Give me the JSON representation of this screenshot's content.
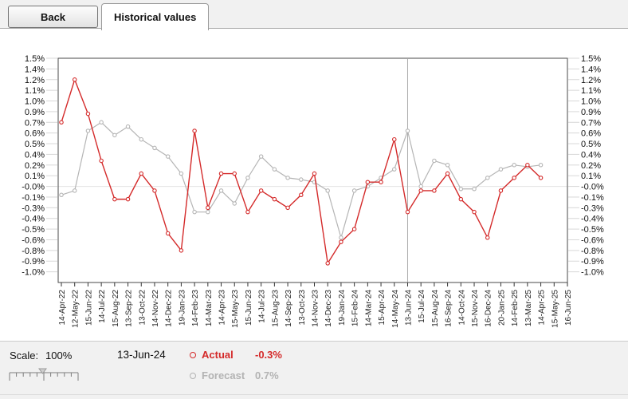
{
  "toolbar": {
    "back_label": "Back",
    "tab_label": "Historical values"
  },
  "chart_data": {
    "type": "line",
    "title": "Historical values",
    "x_labels": [
      "14-Apr-22",
      "12-May-22",
      "15-Jun-22",
      "14-Jul-22",
      "15-Aug-22",
      "13-Sep-22",
      "13-Oct-22",
      "14-Nov-22",
      "14-Dec-22",
      "19-Jan-23",
      "14-Feb-23",
      "14-Mar-23",
      "14-Apr-23",
      "15-May-23",
      "15-Jun-23",
      "14-Jul-23",
      "15-Aug-23",
      "14-Sep-23",
      "13-Oct-23",
      "14-Nov-23",
      "14-Dec-23",
      "19-Jan-24",
      "15-Feb-24",
      "14-Mar-24",
      "15-Apr-24",
      "14-May-24",
      "13-Jun-24",
      "15-Jul-24",
      "15-Aug-24",
      "16-Sep-24",
      "14-Oct-24",
      "15-Nov-24",
      "16-Dec-24",
      "20-Jan-25",
      "14-Feb-25",
      "13-Mar-25",
      "14-Apr-25",
      "15-May-25",
      "16-Jun-25"
    ],
    "y_tick_labels": [
      "1.5%",
      "1.4%",
      "1.2%",
      "1.1%",
      "1.0%",
      "0.9%",
      "0.7%",
      "0.6%",
      "0.5%",
      "0.4%",
      "0.2%",
      "0.1%",
      "-0.0%",
      "-0.1%",
      "-0.3%",
      "-0.4%",
      "-0.5%",
      "-0.6%",
      "-0.8%",
      "-0.9%",
      "-1.0%"
    ],
    "y_top": 1.5,
    "y_tick_step": 0.125,
    "ylim": [
      -1.0,
      1.5
    ],
    "grid": "zero-line-only",
    "legend_position": "footer",
    "series": [
      {
        "name": "Forecast",
        "color": "#b5b5b5",
        "values": [
          -0.1,
          -0.05,
          0.65,
          0.75,
          0.6,
          0.7,
          0.55,
          0.45,
          0.35,
          0.15,
          -0.3,
          -0.3,
          -0.05,
          -0.2,
          0.1,
          0.35,
          0.2,
          0.1,
          0.08,
          0.05,
          -0.05,
          -0.6,
          -0.05,
          0.0,
          0.1,
          0.2,
          0.65,
          0.0,
          0.3,
          0.25,
          -0.03,
          -0.03,
          0.1,
          0.2,
          0.25,
          0.23,
          0.25
        ]
      },
      {
        "name": "Actual",
        "color": "#d42a2a",
        "values": [
          0.75,
          1.25,
          0.85,
          0.3,
          -0.15,
          -0.15,
          0.15,
          -0.05,
          -0.55,
          -0.75,
          0.65,
          -0.25,
          0.15,
          0.15,
          -0.3,
          -0.05,
          -0.15,
          -0.25,
          -0.1,
          0.15,
          -0.9,
          -0.65,
          -0.5,
          0.05,
          0.05,
          0.55,
          -0.3,
          -0.05,
          -0.05,
          0.15,
          -0.15,
          -0.3,
          -0.6,
          -0.05,
          0.1,
          0.25,
          0.1
        ]
      }
    ],
    "cursor": {
      "x_label": "13-Jun-24",
      "index": 26
    }
  },
  "footer": {
    "scale_label": "Scale:",
    "scale_value": "100%",
    "cursor_date": "13-Jun-24",
    "legend": [
      {
        "label": "Actual",
        "value": "-0.3%",
        "color": "#d42a2a"
      },
      {
        "label": "Forecast",
        "value": "0.7%",
        "color": "#b3b3b3"
      }
    ]
  }
}
